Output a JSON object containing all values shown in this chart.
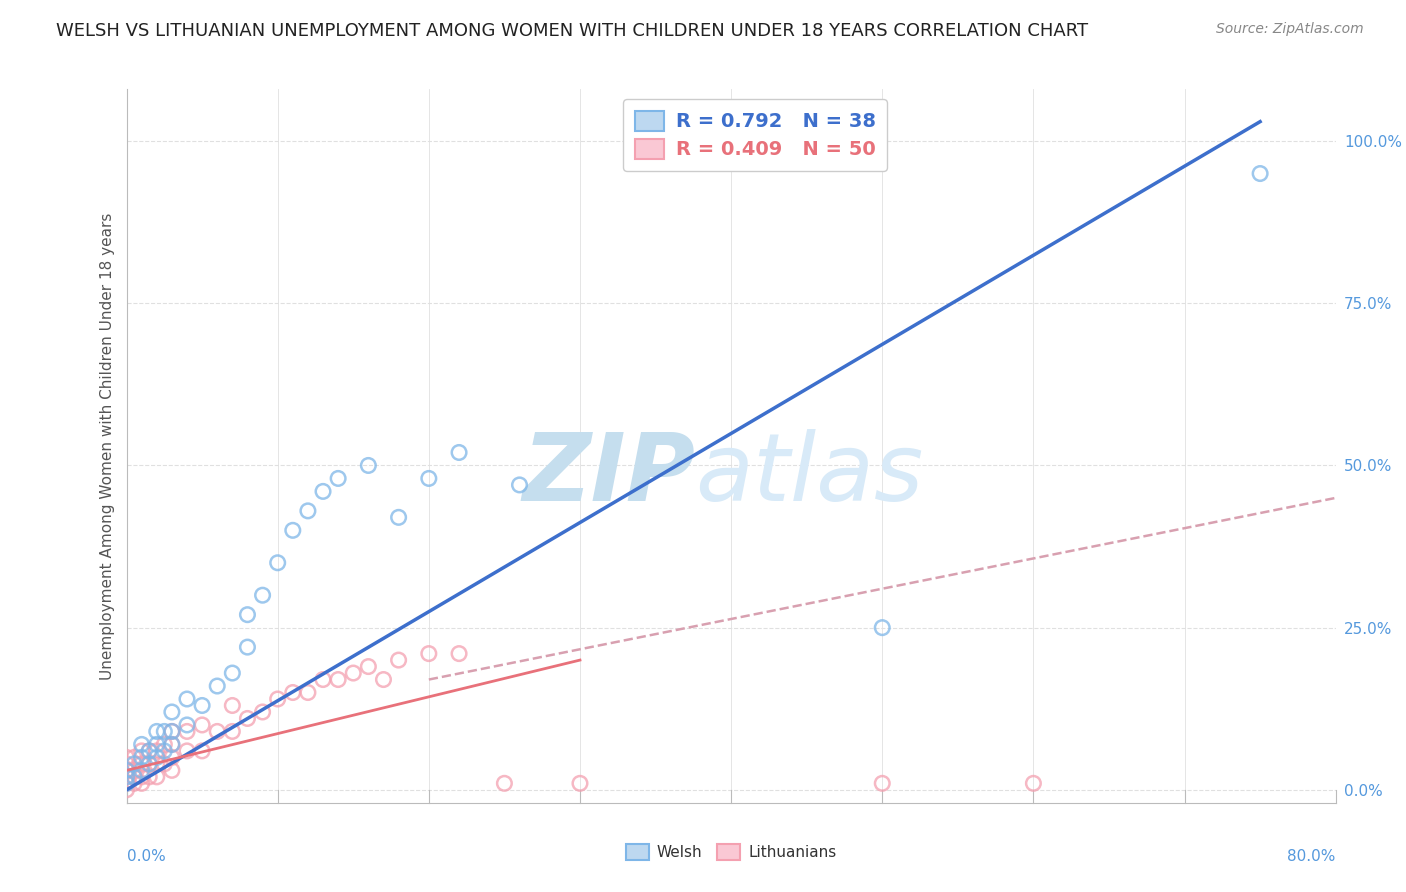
{
  "title": "WELSH VS LITHUANIAN UNEMPLOYMENT AMONG WOMEN WITH CHILDREN UNDER 18 YEARS CORRELATION CHART",
  "source": "Source: ZipAtlas.com",
  "xlabel_bottom_left": "0.0%",
  "xlabel_bottom_right": "80.0%",
  "ylabel": "Unemployment Among Women with Children Under 18 years",
  "yaxis_ticks": [
    "100.0%",
    "75.0%",
    "50.0%",
    "25.0%",
    "0.0%"
  ],
  "yaxis_tick_vals": [
    1.0,
    0.75,
    0.5,
    0.25,
    0.0
  ],
  "xlim": [
    0.0,
    0.8
  ],
  "ylim": [
    -0.02,
    1.08
  ],
  "welsh_R": 0.792,
  "welsh_N": 38,
  "lithuanian_R": 0.409,
  "lithuanian_N": 50,
  "welsh_color": "#7EB6E8",
  "lithuanian_color": "#F4A0B0",
  "welsh_line_color": "#3D6FCC",
  "lithuanian_line_solid_color": "#E8717A",
  "lithuanian_line_dash_color": "#D8A0B0",
  "watermark_zip": "ZIP",
  "watermark_atlas": "atlas",
  "watermark_color": "#D8EAF8",
  "background_color": "#FFFFFF",
  "title_fontsize": 13,
  "source_fontsize": 10,
  "legend_fontsize": 14,
  "axis_label_fontsize": 11,
  "tick_fontsize": 11,
  "welsh_scatter_x": [
    0.0,
    0.0,
    0.0,
    0.005,
    0.005,
    0.01,
    0.01,
    0.01,
    0.015,
    0.015,
    0.02,
    0.02,
    0.02,
    0.025,
    0.025,
    0.03,
    0.03,
    0.03,
    0.04,
    0.04,
    0.05,
    0.06,
    0.07,
    0.08,
    0.08,
    0.09,
    0.1,
    0.11,
    0.12,
    0.13,
    0.14,
    0.16,
    0.18,
    0.2,
    0.22,
    0.26,
    0.5,
    0.75
  ],
  "welsh_scatter_y": [
    0.01,
    0.02,
    0.03,
    0.02,
    0.04,
    0.03,
    0.05,
    0.07,
    0.04,
    0.06,
    0.05,
    0.07,
    0.09,
    0.06,
    0.09,
    0.07,
    0.09,
    0.12,
    0.1,
    0.14,
    0.13,
    0.16,
    0.18,
    0.22,
    0.27,
    0.3,
    0.35,
    0.4,
    0.43,
    0.46,
    0.48,
    0.5,
    0.42,
    0.48,
    0.52,
    0.47,
    0.25,
    0.95
  ],
  "lithuanian_scatter_x": [
    0.0,
    0.0,
    0.0,
    0.0,
    0.0,
    0.0,
    0.005,
    0.005,
    0.005,
    0.005,
    0.01,
    0.01,
    0.01,
    0.01,
    0.015,
    0.015,
    0.015,
    0.02,
    0.02,
    0.02,
    0.025,
    0.025,
    0.03,
    0.03,
    0.03,
    0.03,
    0.04,
    0.04,
    0.05,
    0.05,
    0.06,
    0.07,
    0.07,
    0.08,
    0.09,
    0.1,
    0.11,
    0.12,
    0.13,
    0.14,
    0.15,
    0.16,
    0.17,
    0.18,
    0.2,
    0.22,
    0.25,
    0.3,
    0.5,
    0.6
  ],
  "lithuanian_scatter_y": [
    0.0,
    0.01,
    0.02,
    0.03,
    0.04,
    0.05,
    0.01,
    0.02,
    0.03,
    0.05,
    0.01,
    0.02,
    0.04,
    0.06,
    0.02,
    0.04,
    0.06,
    0.02,
    0.04,
    0.06,
    0.04,
    0.07,
    0.03,
    0.05,
    0.07,
    0.09,
    0.06,
    0.09,
    0.06,
    0.1,
    0.09,
    0.09,
    0.13,
    0.11,
    0.12,
    0.14,
    0.15,
    0.15,
    0.17,
    0.17,
    0.18,
    0.19,
    0.17,
    0.2,
    0.21,
    0.21,
    0.01,
    0.01,
    0.01,
    0.01
  ],
  "welsh_line_x": [
    0.0,
    0.75
  ],
  "welsh_line_y": [
    0.0,
    1.03
  ],
  "lithuanian_solid_line_x": [
    0.0,
    0.3
  ],
  "lithuanian_solid_line_y": [
    0.03,
    0.2
  ],
  "lithuanian_dash_line_x": [
    0.2,
    0.8
  ],
  "lithuanian_dash_line_y": [
    0.17,
    0.45
  ],
  "grid_color": "#E0E0E0",
  "tick_color": "#5599DD"
}
